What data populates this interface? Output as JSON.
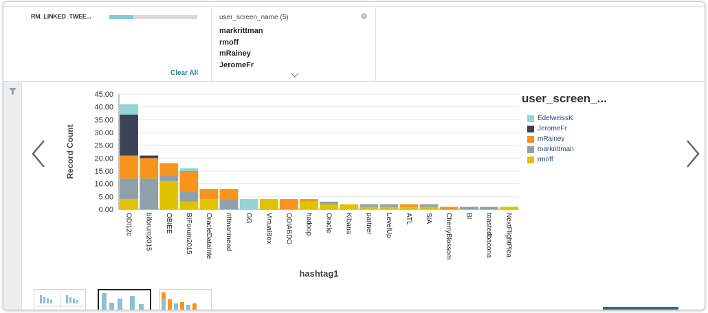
{
  "filters": {
    "linked": {
      "label": "RM_LINKED_TWEE...",
      "fill_fraction": 0.27
    },
    "clear_all": "Clear All",
    "screen_name": {
      "title": "user_screen_name (5)",
      "values": [
        "markrittman",
        "rmoff",
        "mRainey",
        "JeromeFr"
      ]
    }
  },
  "colors": {
    "EdelweissK": "#93d4d8",
    "JeromeFr": "#3c4356",
    "mRainey": "#f7941d",
    "markrittman": "#8fa0ab",
    "rmoff": "#e0c200"
  },
  "legend": {
    "title": "user_screen_...",
    "items": [
      "EdelweissK",
      "JeromeFr",
      "mRainey",
      "markrittman",
      "rmoff"
    ]
  },
  "chart_data": {
    "type": "bar",
    "stacked": true,
    "xlabel": "hashtag1",
    "ylabel": "Record Count",
    "ylim": [
      0,
      45
    ],
    "yticks": [
      "0.00",
      "5.00",
      "10.00",
      "15.00",
      "20.00",
      "25.00",
      "30.00",
      "35.00",
      "40.00",
      "45.00"
    ],
    "categories": [
      "ODI12c",
      "biforum2015",
      "OBIEE",
      "BIForum2015",
      "OracleDataInte",
      "rittmanmead",
      "GG",
      "VirtualBox",
      "ODIABDO",
      "hadoop",
      "Oracle",
      "Kibana",
      "partner",
      "LevelUp",
      "ATL",
      "SIA",
      "CherryBlossom",
      "BI",
      "toastedbacona",
      "NextFlightPlea"
    ],
    "series": [
      {
        "name": "rmoff",
        "values": [
          4,
          0,
          11,
          3,
          4,
          0,
          0,
          4,
          0,
          3,
          2,
          2,
          1,
          1,
          1,
          1,
          0,
          0,
          0,
          1
        ]
      },
      {
        "name": "markrittman",
        "values": [
          8,
          12,
          2,
          4,
          0,
          4,
          0,
          0,
          0,
          0,
          1,
          0,
          1,
          1,
          0,
          1,
          0,
          1,
          1,
          0
        ]
      },
      {
        "name": "mRainey",
        "values": [
          9,
          8,
          5,
          8,
          4,
          4,
          0,
          0,
          4,
          1,
          0,
          0,
          0,
          0,
          1,
          0,
          1,
          0,
          0,
          0
        ]
      },
      {
        "name": "JeromeFr",
        "values": [
          16,
          1,
          0,
          0,
          0,
          0,
          0,
          0,
          0,
          0,
          0,
          0,
          0,
          0,
          0,
          0,
          0,
          0,
          0,
          0
        ]
      },
      {
        "name": "EdelweissK",
        "values": [
          4,
          0,
          0,
          1,
          0,
          0,
          4,
          0,
          0,
          0,
          0,
          0,
          0,
          0,
          0,
          0,
          0,
          0,
          0,
          0
        ]
      }
    ]
  }
}
